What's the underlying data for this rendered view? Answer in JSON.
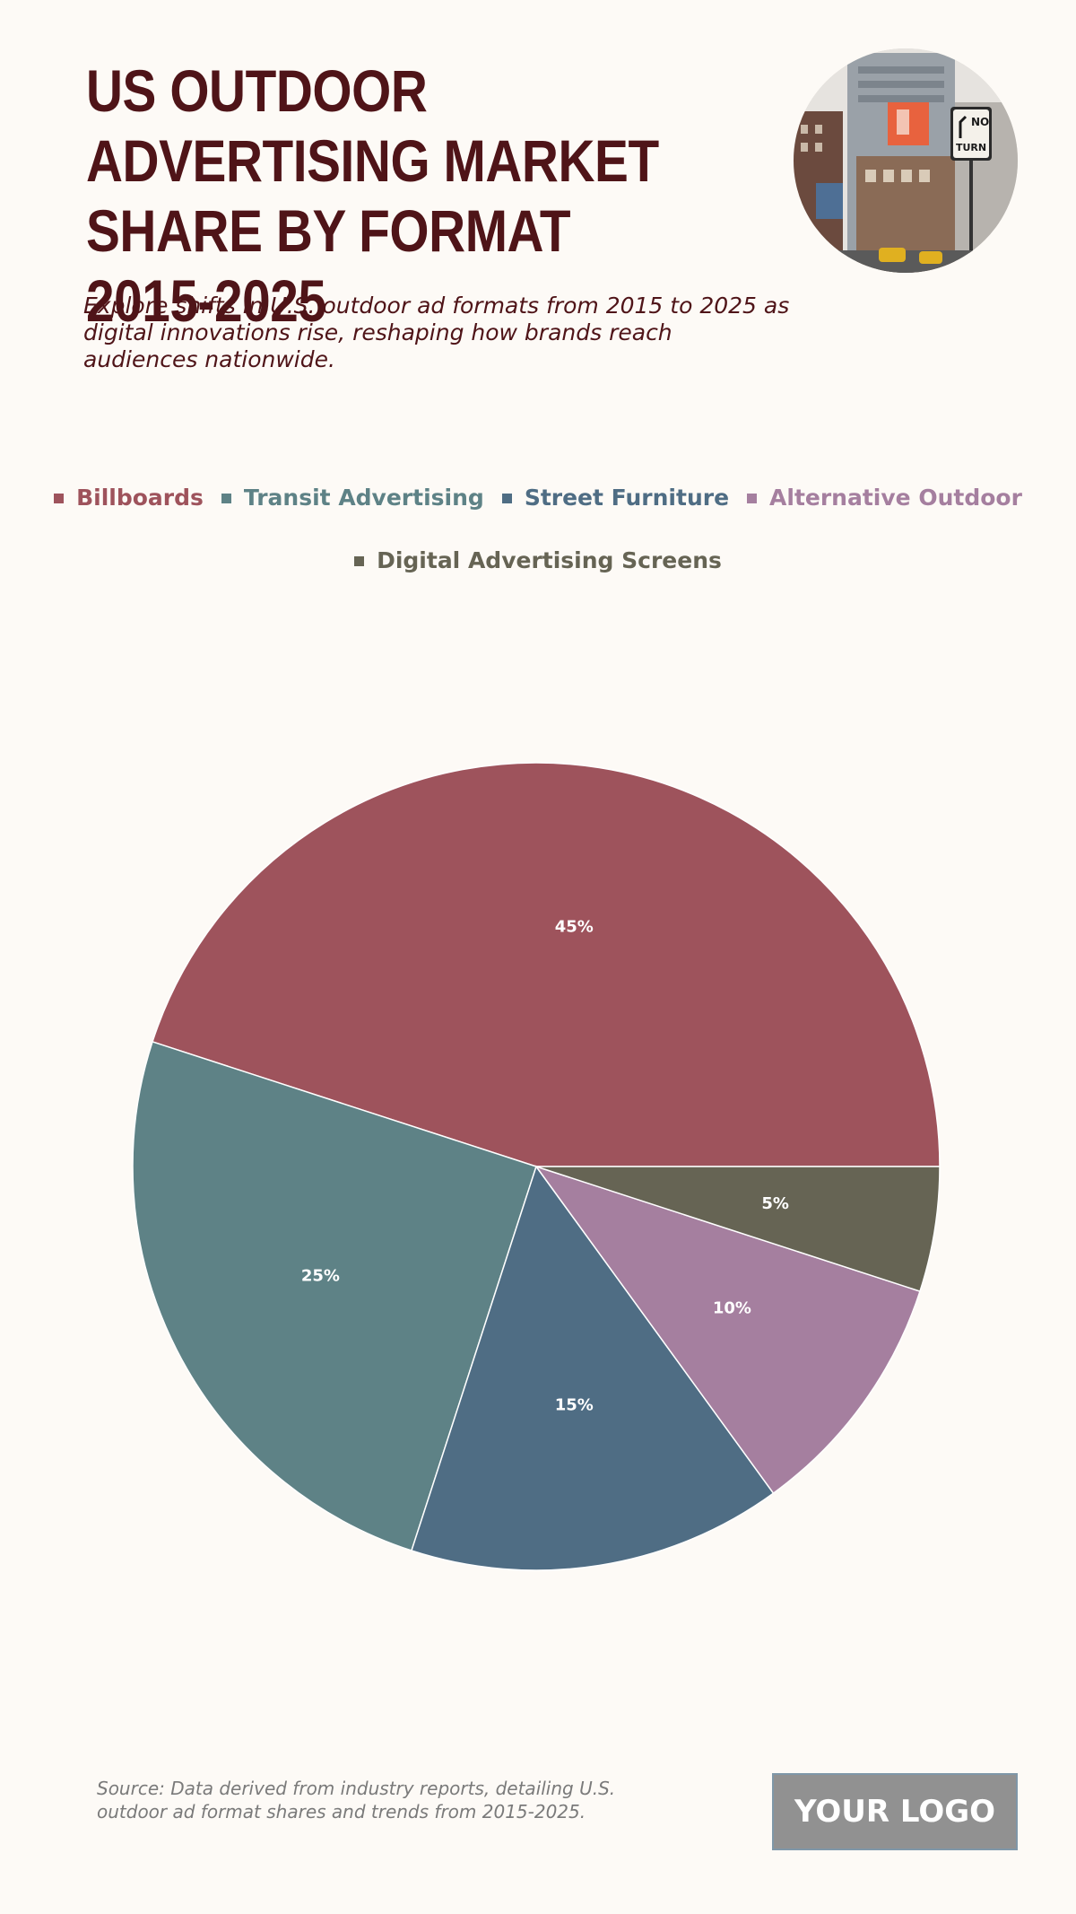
{
  "header": {
    "title": "US OUTDOOR ADVERTISING MARKET SHARE BY FORMAT 2015-2025",
    "subtitle": "Explore shifts in U.S. outdoor ad formats from 2015 to 2025 as digital innovations rise, reshaping how brands reach audiences nationwide."
  },
  "chart_data": {
    "type": "pie",
    "title": "US OUTDOOR ADVERTISING MARKET SHARE BY FORMAT 2015-2025",
    "legend_position": "top",
    "series": [
      {
        "name": "Billboards",
        "value": 45,
        "label": "45%",
        "color": "#9e535c"
      },
      {
        "name": "Transit Advertising",
        "value": 25,
        "label": "25%",
        "color": "#5e8286"
      },
      {
        "name": "Street Furniture",
        "value": 15,
        "label": "15%",
        "color": "#4f6d84"
      },
      {
        "name": "Alternative Outdoor",
        "value": 10,
        "label": "10%",
        "color": "#a57f9f"
      },
      {
        "name": "Digital Advertising Screens",
        "value": 5,
        "label": "5%",
        "color": "#666454"
      }
    ]
  },
  "footer": {
    "source": "Source: Data derived from industry reports, detailing U.S. outdoor ad format shares and trends from 2015-2025.",
    "logo_text": "YOUR LOGO"
  },
  "photo": {
    "icon": "city-street-photo",
    "sign_text": "NO TURN"
  }
}
